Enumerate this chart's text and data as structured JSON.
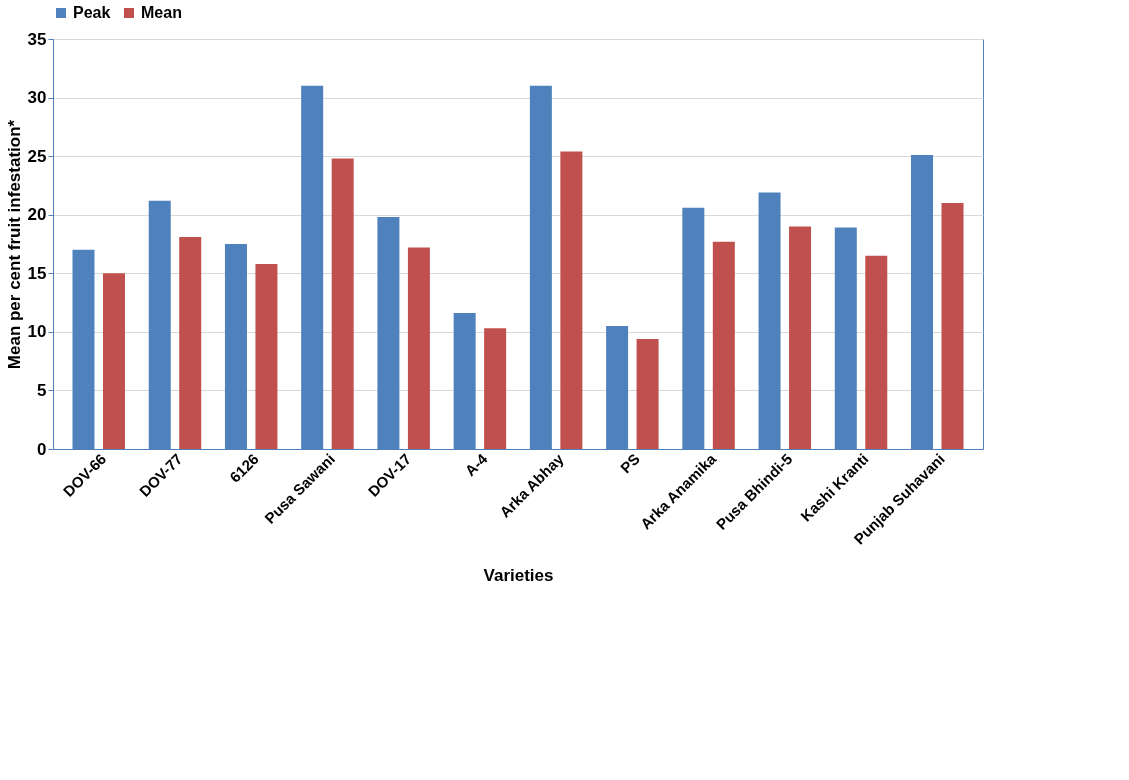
{
  "chart_data": {
    "type": "bar",
    "xlabel": "Varieties",
    "ylabel": "Mean per cent fruit infestation*",
    "categories": [
      "DOV-66",
      "DOV-77",
      "6126",
      "Pusa Sawani",
      "DOV-17",
      "A-4",
      "Arka Abhay",
      "PS",
      "Arka Anamika",
      "Pusa Bhindi-5",
      "Kashi Kranti",
      "Punjab Suhavani"
    ],
    "series": [
      {
        "name": "Peak",
        "color": "#4f81bd",
        "values": [
          17,
          21.2,
          17.5,
          31,
          19.8,
          11.6,
          31,
          10.5,
          20.6,
          21.9,
          18.9,
          25.1
        ]
      },
      {
        "name": "Mean",
        "color": "#c0504d",
        "values": [
          15,
          18.1,
          15.8,
          24.8,
          17.2,
          10.3,
          25.4,
          9.4,
          17.7,
          19,
          16.5,
          21
        ]
      }
    ],
    "ylim": [
      0,
      35
    ],
    "yticks": [
      0,
      5,
      10,
      15,
      20,
      25,
      30,
      35
    ],
    "grid": "y",
    "legend": "top"
  }
}
